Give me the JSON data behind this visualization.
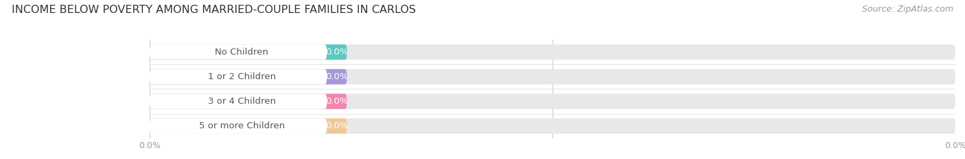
{
  "title": "INCOME BELOW POVERTY AMONG MARRIED-COUPLE FAMILIES IN CARLOS",
  "source": "Source: ZipAtlas.com",
  "categories": [
    "No Children",
    "1 or 2 Children",
    "3 or 4 Children",
    "5 or more Children"
  ],
  "values": [
    0.0,
    0.0,
    0.0,
    0.0
  ],
  "bar_colors": [
    "#5bc8c0",
    "#a898d8",
    "#f088b0",
    "#f0c898"
  ],
  "bar_bg_color": "#e8e8e8",
  "label_bg_color": "#ffffff",
  "value_label": "0.0%",
  "xlim": [
    0,
    100
  ],
  "xlabel_tick_labels": [
    "0.0%",
    "0.0%"
  ],
  "title_fontsize": 11.5,
  "source_fontsize": 9,
  "tick_fontsize": 9,
  "bar_label_fontsize": 9.5,
  "value_fontsize": 9.5,
  "text_color": "#555555",
  "tick_color": "#999999",
  "background_color": "#ffffff",
  "grid_color": "#cccccc"
}
